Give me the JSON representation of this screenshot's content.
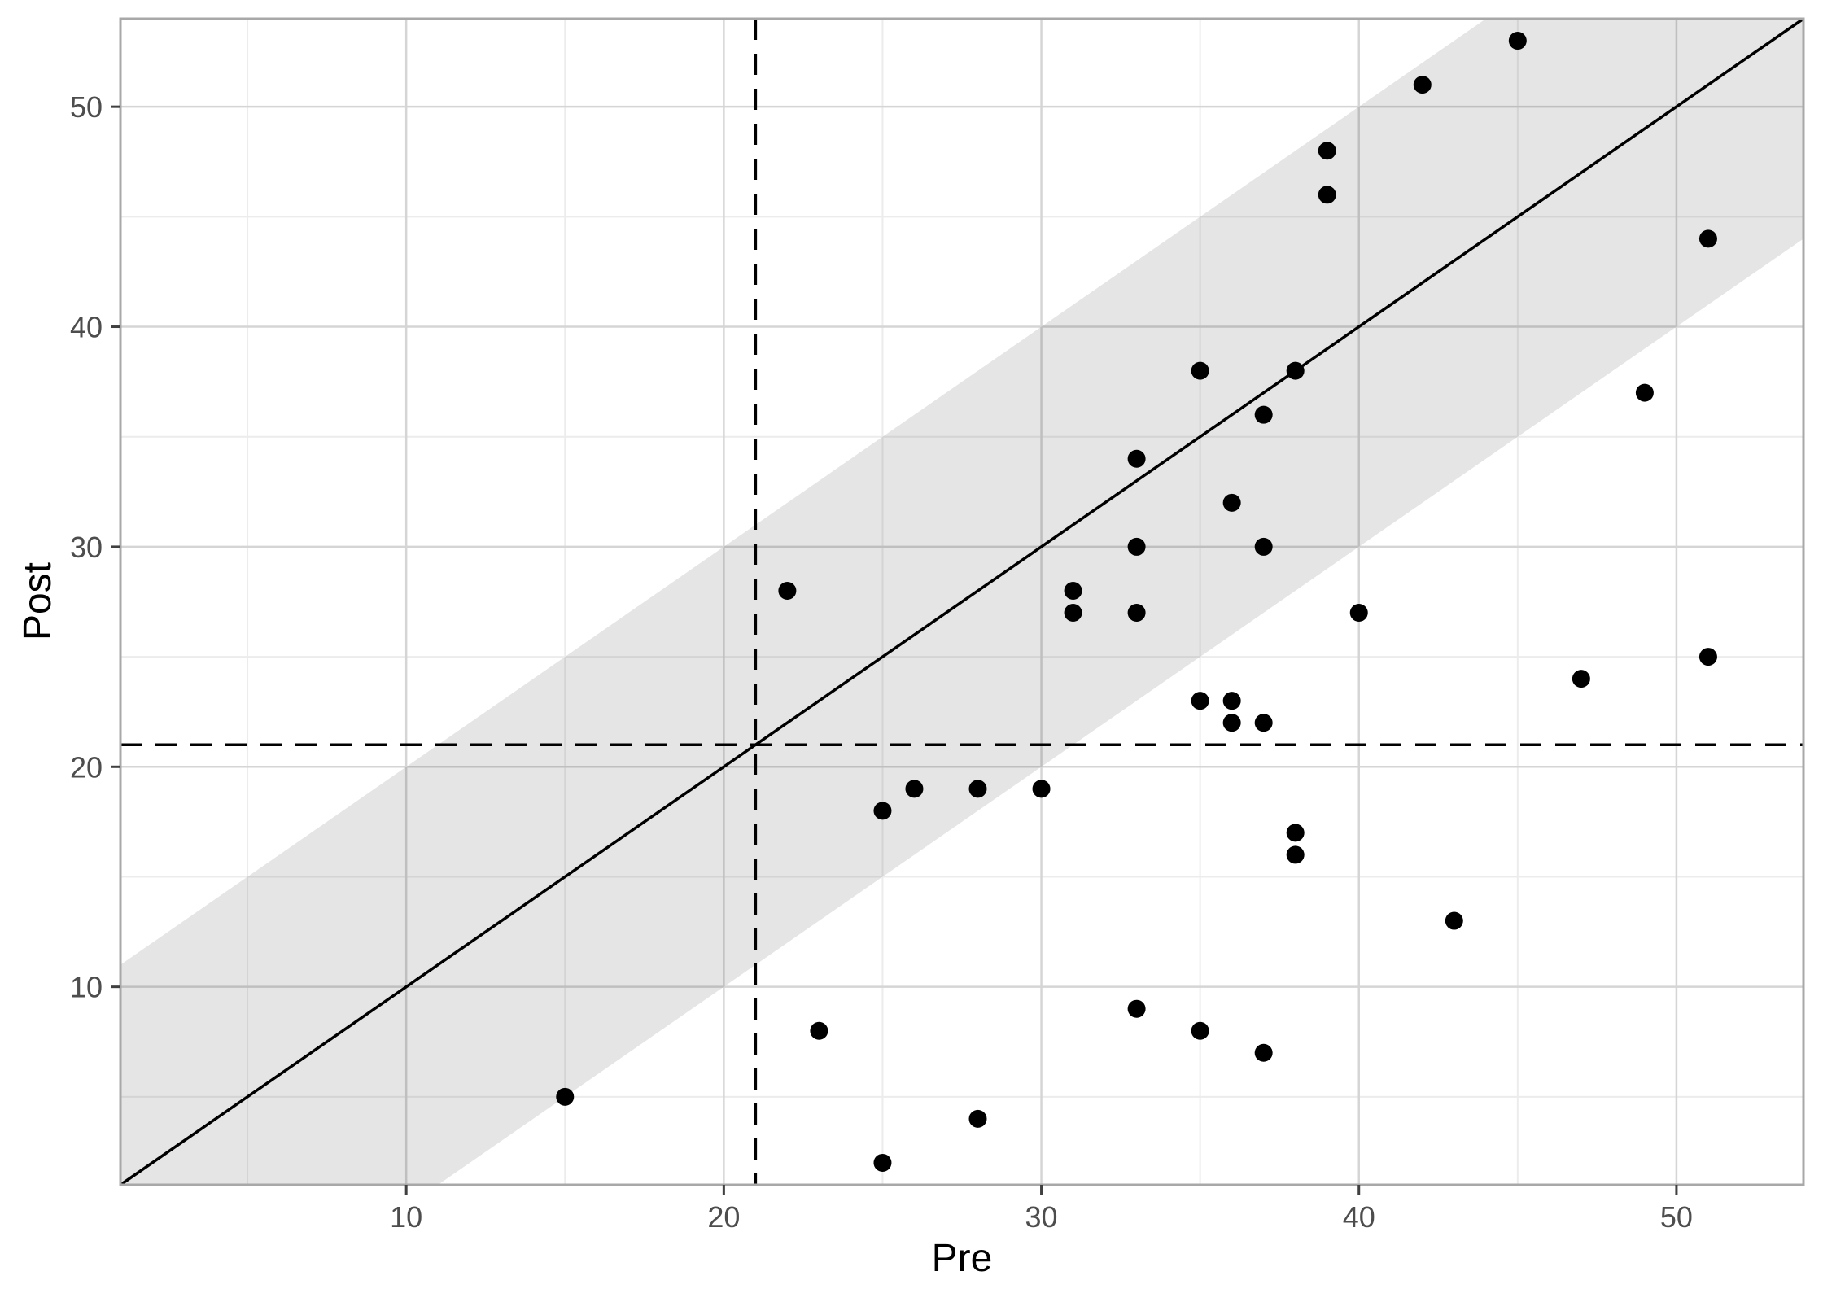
{
  "chart_data": {
    "type": "scatter",
    "title": "",
    "xlabel": "Pre",
    "ylabel": "Post",
    "xlim": [
      1,
      54
    ],
    "ylim": [
      1,
      54
    ],
    "x_major_ticks": [
      10,
      20,
      30,
      40,
      50
    ],
    "x_minor_ticks": [
      5,
      15,
      25,
      35,
      45
    ],
    "y_major_ticks": [
      10,
      20,
      30,
      40,
      50
    ],
    "y_minor_ticks": [
      5,
      15,
      25,
      35,
      45
    ],
    "x_tick_labels": [
      "10",
      "20",
      "30",
      "40",
      "50"
    ],
    "y_tick_labels": [
      "10",
      "20",
      "30",
      "40",
      "50"
    ],
    "points": [
      [
        15,
        5
      ],
      [
        22,
        28
      ],
      [
        23,
        8
      ],
      [
        25,
        2
      ],
      [
        25,
        18
      ],
      [
        26,
        19
      ],
      [
        28,
        4
      ],
      [
        28,
        19
      ],
      [
        30,
        19
      ],
      [
        31,
        27
      ],
      [
        31,
        28
      ],
      [
        33,
        9
      ],
      [
        33,
        27
      ],
      [
        33,
        30
      ],
      [
        33,
        34
      ],
      [
        35,
        8
      ],
      [
        35,
        23
      ],
      [
        35,
        38
      ],
      [
        36,
        22
      ],
      [
        36,
        23
      ],
      [
        36,
        32
      ],
      [
        37,
        7
      ],
      [
        37,
        22
      ],
      [
        37,
        30
      ],
      [
        37,
        36
      ],
      [
        38,
        16
      ],
      [
        38,
        17
      ],
      [
        38,
        38
      ],
      [
        39,
        46
      ],
      [
        39,
        48
      ],
      [
        40,
        27
      ],
      [
        42,
        51
      ],
      [
        43,
        13
      ],
      [
        45,
        53
      ],
      [
        47,
        24
      ],
      [
        49,
        37
      ],
      [
        51,
        25
      ],
      [
        51,
        44
      ]
    ],
    "identity_line": {
      "slope": 1,
      "intercept": 0,
      "style": "solid"
    },
    "band": {
      "center": "identity",
      "offset": 10
    },
    "reference_lines": {
      "vline_x": 21,
      "hline_y": 21,
      "style": "dashed"
    },
    "grid": "on",
    "legend": "none",
    "point_radius": 11,
    "colors": {
      "background": "#ffffff",
      "point": "#000000",
      "identity_line": "#000000",
      "dashed_line": "#000000",
      "band_fill": "rgba(0,0,0,0.10)",
      "grid_major": "#d5d5d5",
      "grid_minor": "#ececec",
      "panel_border": "#a8a8a8",
      "tick_mark": "#404040",
      "tick_label": "#4d4d4d",
      "axis_title": "#000000"
    }
  }
}
